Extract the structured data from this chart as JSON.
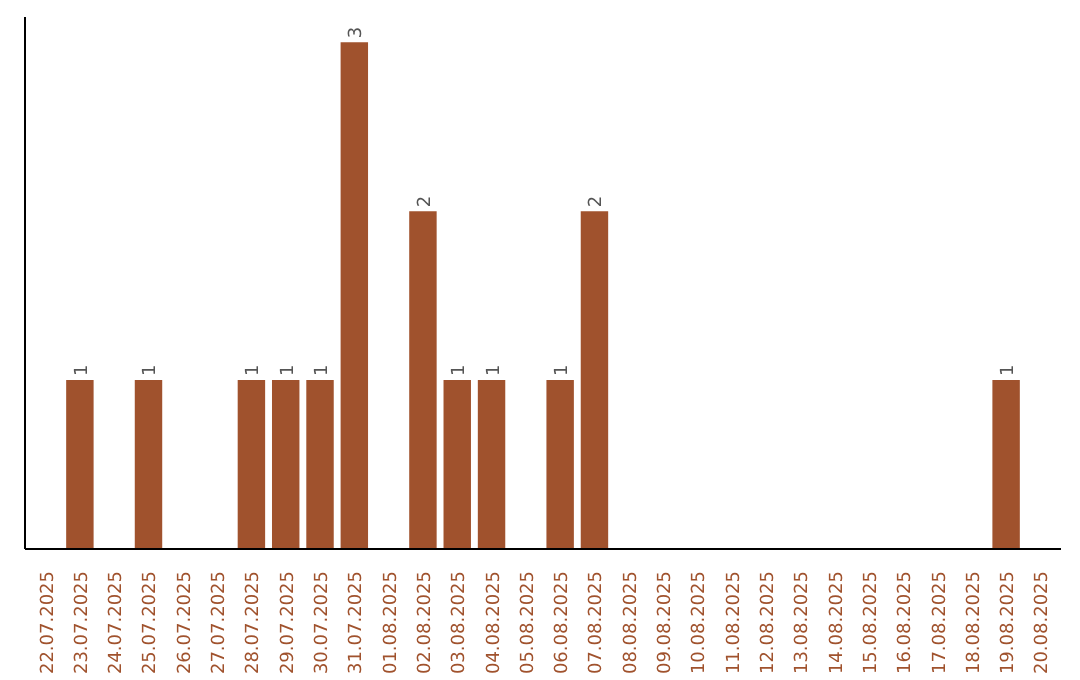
{
  "chart_data": {
    "type": "bar",
    "categories": [
      "22.07.2025",
      "23.07.2025",
      "24.07.2025",
      "25.07.2025",
      "26.07.2025",
      "27.07.2025",
      "28.07.2025",
      "29.07.2025",
      "30.07.2025",
      "31.07.2025",
      "01.08.2025",
      "02.08.2025",
      "03.08.2025",
      "04.08.2025",
      "05.08.2025",
      "06.08.2025",
      "07.08.2025",
      "08.08.2025",
      "09.08.2025",
      "10.08.2025",
      "11.08.2025",
      "12.08.2025",
      "13.08.2025",
      "14.08.2025",
      "15.08.2025",
      "16.08.2025",
      "17.08.2025",
      "18.08.2025",
      "19.08.2025",
      "20.08.2025"
    ],
    "values": [
      0,
      1,
      0,
      1,
      0,
      0,
      1,
      1,
      1,
      3,
      0,
      2,
      1,
      1,
      0,
      1,
      2,
      0,
      0,
      0,
      0,
      0,
      0,
      0,
      0,
      0,
      0,
      0,
      1,
      0
    ],
    "value_labels": [
      null,
      "1",
      null,
      "1",
      null,
      null,
      "1",
      "1",
      "1",
      "3",
      null,
      "2",
      "1",
      "1",
      null,
      "1",
      "2",
      null,
      null,
      null,
      null,
      null,
      null,
      null,
      null,
      null,
      null,
      null,
      "1",
      null
    ],
    "color": "#a0522d",
    "ylim": [
      0,
      3.15
    ],
    "tick_labels": "x",
    "grid": false
  }
}
